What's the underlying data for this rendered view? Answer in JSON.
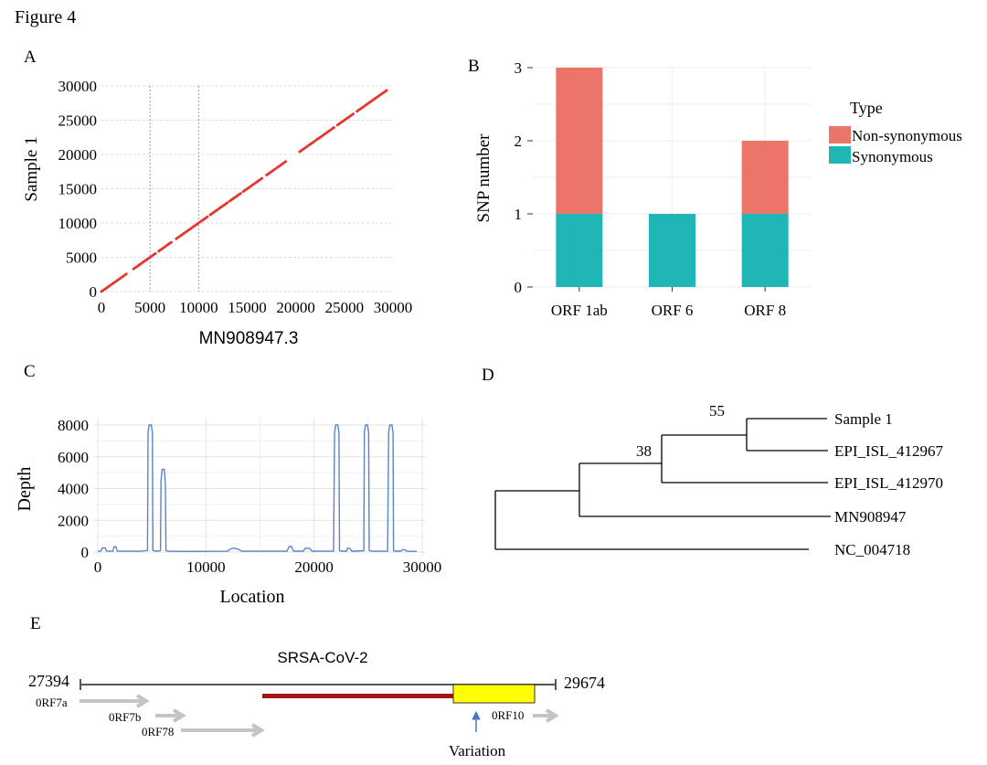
{
  "figure_title": "Figure 4",
  "panel_labels": {
    "a": "A",
    "b": "B",
    "c": "C",
    "d": "D",
    "e": "E"
  },
  "colors": {
    "dot": "#e8322d",
    "non_synonymous": "#ec7569",
    "synonymous": "#20b6b6",
    "depth_line": "#5b85c9",
    "red_bar": "#a31414",
    "yellow_box": "#ffff00",
    "gray_arrow": "#c4c4c4",
    "variation_arrow": "#4f74c2"
  },
  "chart_data": [
    {
      "id": "A",
      "type": "scatter",
      "title": "",
      "xlabel": "MN908947.3",
      "ylabel": "Sample 1",
      "xlim": [
        0,
        30000
      ],
      "ylim": [
        0,
        30000
      ],
      "xticks": [
        0,
        5000,
        10000,
        15000,
        20000,
        25000,
        30000
      ],
      "yticks": [
        0,
        5000,
        10000,
        15000,
        20000,
        25000,
        30000
      ],
      "xtick_labels": [
        "0",
        "5000",
        "10000",
        "15000",
        "20000",
        "25000",
        "30000"
      ],
      "ytick_labels": [
        "0",
        "5000",
        "10000",
        "15000",
        "20000",
        "25000",
        "30000"
      ],
      "segments": [
        [
          0,
          2600
        ],
        [
          3300,
          5600
        ],
        [
          5900,
          7300
        ],
        [
          7700,
          11000
        ],
        [
          11200,
          13000
        ],
        [
          13200,
          14400
        ],
        [
          14600,
          16600
        ],
        [
          17000,
          17900
        ],
        [
          18000,
          19000
        ],
        [
          20400,
          24000
        ],
        [
          24300,
          26000
        ],
        [
          26300,
          29400
        ]
      ]
    },
    {
      "id": "B",
      "type": "bar",
      "stacked": true,
      "title": "",
      "xlabel": "",
      "ylabel": "SNP number",
      "ylim": [
        0,
        3
      ],
      "yticks": [
        0,
        1,
        2,
        3
      ],
      "ytick_labels": [
        "0",
        "1",
        "2",
        "3"
      ],
      "categories": [
        "ORF 1ab",
        "ORF 6",
        "ORF 8"
      ],
      "series": [
        {
          "name": "Synonymous",
          "values": [
            1,
            1,
            1
          ]
        },
        {
          "name": "Non-synonymous",
          "values": [
            2,
            0,
            1
          ]
        }
      ],
      "legend": {
        "title": "Type",
        "entries": [
          "Non-synonymous",
          "Synonymous"
        ],
        "position": "right"
      }
    },
    {
      "id": "C",
      "type": "line",
      "title": "",
      "xlabel": "Location",
      "ylabel": "Depth",
      "xlim": [
        0,
        30000
      ],
      "ylim": [
        0,
        8000
      ],
      "xticks": [
        0,
        10000,
        20000,
        30000
      ],
      "yticks": [
        0,
        2000,
        4000,
        6000,
        8000
      ],
      "xtick_labels": [
        "0",
        "10000",
        "20000",
        "30000"
      ],
      "ytick_labels": [
        "0",
        "2000",
        "4000",
        "6000",
        "8000"
      ],
      "x": [
        0,
        300,
        400,
        700,
        800,
        1000,
        1400,
        1500,
        1700,
        1800,
        2200,
        4000,
        4600,
        4650,
        4750,
        4950,
        5050,
        5100,
        5500,
        5800,
        5850,
        5950,
        6150,
        6250,
        6300,
        6500,
        8000,
        12000,
        12300,
        12600,
        13000,
        13300,
        16000,
        17500,
        17700,
        17900,
        18100,
        19000,
        19200,
        19600,
        19800,
        20500,
        21800,
        21900,
        22000,
        22200,
        22300,
        22350,
        22500,
        23000,
        23100,
        23300,
        23500,
        24600,
        24650,
        24750,
        24950,
        25050,
        25100,
        25300,
        26800,
        26900,
        27000,
        27200,
        27300,
        27350,
        27500,
        28000,
        28200,
        28400,
        28600,
        29500
      ],
      "y": [
        50,
        60,
        250,
        250,
        60,
        50,
        50,
        330,
        330,
        60,
        50,
        50,
        100,
        7500,
        8000,
        8000,
        7500,
        100,
        50,
        100,
        4500,
        5200,
        5200,
        4200,
        100,
        50,
        40,
        50,
        200,
        250,
        180,
        50,
        50,
        60,
        350,
        360,
        60,
        60,
        250,
        230,
        60,
        50,
        60,
        7500,
        8000,
        8000,
        7500,
        100,
        60,
        60,
        250,
        230,
        50,
        80,
        7500,
        8000,
        8000,
        7500,
        100,
        50,
        60,
        7500,
        8000,
        8000,
        7500,
        100,
        60,
        60,
        160,
        130,
        50,
        40
      ]
    }
  ],
  "tree": {
    "leaves": [
      "Sample 1",
      "EPI_ISL_412967",
      "EPI_ISL_412970",
      "MN908947",
      "NC_004718"
    ],
    "bootstraps": [
      "55",
      "38"
    ]
  },
  "genome_map": {
    "title": "SRSA-CoV-2",
    "start": "27394",
    "end": "29674",
    "orfs": [
      "0RF7a",
      "0RF7b",
      "0RF78",
      "0RF10"
    ],
    "variation_label": "Variation"
  }
}
